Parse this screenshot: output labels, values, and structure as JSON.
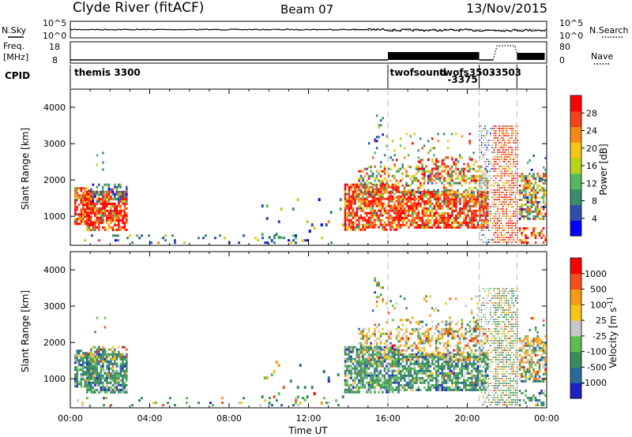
{
  "header": {
    "title": "Clyde River (fitACF)",
    "beam": "Beam 07",
    "date": "13/Nov/2015"
  },
  "strips": {
    "nsky_label": "N.Sky",
    "nsearch_label": "N.Search",
    "freq_label_1": "Freq.",
    "freq_label_2": "[MHz]",
    "nave_label": "Nave",
    "cpid_label": "CPID",
    "noise_ticks_left": [
      "10^5",
      "10^0"
    ],
    "noise_ticks_right": [
      "10^5",
      "10^0"
    ],
    "freq_ticks": [
      "18",
      "8"
    ],
    "nave_ticks": [
      "80",
      "0"
    ],
    "cpid_entries": [
      {
        "label": "themis 3300",
        "t": 0.2,
        "row": 0
      },
      {
        "label": "twofsound",
        "t": 16.1,
        "row": 0
      },
      {
        "label": "twofs3503",
        "t": 18.6,
        "row": 0
      },
      {
        "label": "-3375",
        "t": 19.0,
        "row": 1
      },
      {
        "label": "-3503",
        "t": 21.2,
        "row": 0
      }
    ]
  },
  "chart_data": [
    {
      "type": "heatmap",
      "name": "power",
      "ylabel": "Slant Range [km]",
      "xlabel": "Time UT",
      "xlim": [
        0,
        24
      ],
      "ylim": [
        200,
        4500
      ],
      "xticks": [
        "00:00",
        "04:00",
        "08:00",
        "12:00",
        "16:00",
        "20:00",
        "00:00"
      ],
      "yticks": [
        "1000",
        "2000",
        "3000",
        "4000"
      ],
      "colorbar_label": "Power [dB]",
      "colorbar_ticks": [
        "28",
        "24",
        "20",
        "16",
        "12",
        "8",
        "4"
      ],
      "colors": [
        "#0000ff",
        "#2d4faa",
        "#3a8c6a",
        "#55b860",
        "#b8d418",
        "#f5c518",
        "#f58a18",
        "#f5441a",
        "#ff0000"
      ]
    },
    {
      "type": "heatmap",
      "name": "velocity",
      "ylabel": "Slant Range [km]",
      "xlabel": "Time UT",
      "xlim": [
        0,
        24
      ],
      "ylim": [
        200,
        4500
      ],
      "xticks": [
        "00:00",
        "04:00",
        "08:00",
        "12:00",
        "16:00",
        "20:00",
        "00:00"
      ],
      "yticks": [
        "1000",
        "2000",
        "3000",
        "4000"
      ],
      "colorbar_label": "Velocity [m s^-1]",
      "colorbar_ticks": [
        "1000",
        "500",
        "100",
        "25",
        "-25",
        "-100",
        "-500",
        "-1000"
      ],
      "colors": [
        "#2020c0",
        "#2a6a9a",
        "#3b8c5a",
        "#5cc050",
        "#c8c8c8",
        "#f5c518",
        "#f59a18",
        "#f5501a",
        "#ff0000"
      ]
    }
  ],
  "x_axis": {
    "ticks": [
      "00:00",
      "04:00",
      "08:00",
      "12:00",
      "16:00",
      "20:00",
      "00:00"
    ],
    "label": "Time UT"
  }
}
